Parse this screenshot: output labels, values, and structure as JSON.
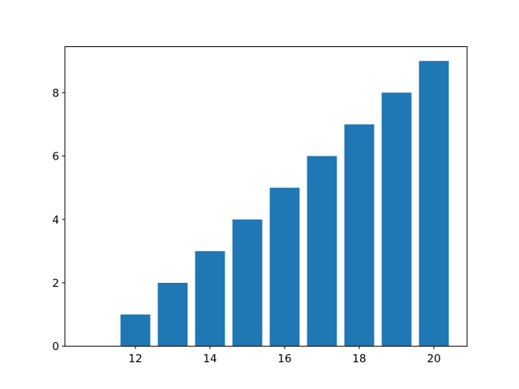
{
  "chart_data": {
    "type": "bar",
    "x": [
      11,
      12,
      13,
      14,
      15,
      16,
      17,
      18,
      19,
      20
    ],
    "values": [
      0,
      1,
      2,
      3,
      4,
      5,
      6,
      7,
      8,
      9
    ],
    "color": "#1f77b4",
    "xlim": [
      10.11,
      20.89
    ],
    "xticks": [
      12,
      14,
      16,
      18,
      20
    ],
    "ylim": [
      0,
      9.45
    ],
    "yticks": [
      0,
      2,
      4,
      6,
      8
    ],
    "grid": false
  }
}
